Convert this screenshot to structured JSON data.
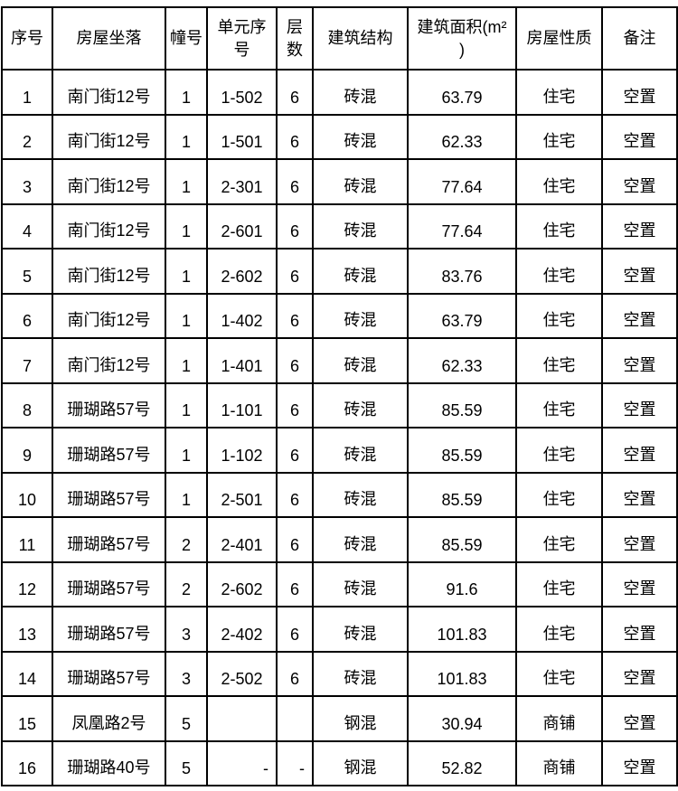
{
  "table": {
    "headers": [
      "序号",
      "房屋坐落",
      "幢号",
      "单元序号",
      "层数",
      "建筑结构",
      "建筑面积(m²\n)",
      "房屋性质",
      "备注"
    ],
    "rows": [
      [
        "1",
        "南门街12号",
        "1",
        "1-502",
        "6",
        "砖混",
        "63.79",
        "住宅",
        "空置"
      ],
      [
        "2",
        "南门街12号",
        "1",
        "1-501",
        "6",
        "砖混",
        "62.33",
        "住宅",
        "空置"
      ],
      [
        "3",
        "南门街12号",
        "1",
        "2-301",
        "6",
        "砖混",
        "77.64",
        "住宅",
        "空置"
      ],
      [
        "4",
        "南门街12号",
        "1",
        "2-601",
        "6",
        "砖混",
        "77.64",
        "住宅",
        "空置"
      ],
      [
        "5",
        "南门街12号",
        "1",
        "2-602",
        "6",
        "砖混",
        "83.76",
        "住宅",
        "空置"
      ],
      [
        "6",
        "南门街12号",
        "1",
        "1-402",
        "6",
        "砖混",
        "63.79",
        "住宅",
        "空置"
      ],
      [
        "7",
        "南门街12号",
        "1",
        "1-401",
        "6",
        "砖混",
        "62.33",
        "住宅",
        "空置"
      ],
      [
        "8",
        "珊瑚路57号",
        "1",
        "1-101",
        "6",
        "砖混",
        "85.59",
        "住宅",
        "空置"
      ],
      [
        "9",
        "珊瑚路57号",
        "1",
        "1-102",
        "6",
        "砖混",
        "85.59",
        "住宅",
        "空置"
      ],
      [
        "10",
        "珊瑚路57号",
        "1",
        "2-501",
        "6",
        "砖混",
        "85.59",
        "住宅",
        "空置"
      ],
      [
        "11",
        "珊瑚路57号",
        "2",
        "2-401",
        "6",
        "砖混",
        "85.59",
        "住宅",
        "空置"
      ],
      [
        "12",
        "珊瑚路57号",
        "2",
        "2-602",
        "6",
        "砖混",
        "91.6",
        "住宅",
        "空置"
      ],
      [
        "13",
        "珊瑚路57号",
        "3",
        "2-402",
        "6",
        "砖混",
        "101.83",
        "住宅",
        "空置"
      ],
      [
        "14",
        "珊瑚路57号",
        "3",
        "2-502",
        "6",
        "砖混",
        "101.83",
        "住宅",
        "空置"
      ],
      [
        "15",
        "凤凰路2号",
        "5",
        "",
        "",
        "钢混",
        "30.94",
        "商铺",
        "空置"
      ],
      [
        "16",
        "珊瑚路40号",
        "5",
        "-",
        "-",
        "钢混",
        "52.82",
        "商铺",
        "空置"
      ]
    ],
    "colors": {
      "border": "#000000",
      "text": "#000000",
      "background": "#ffffff"
    }
  }
}
